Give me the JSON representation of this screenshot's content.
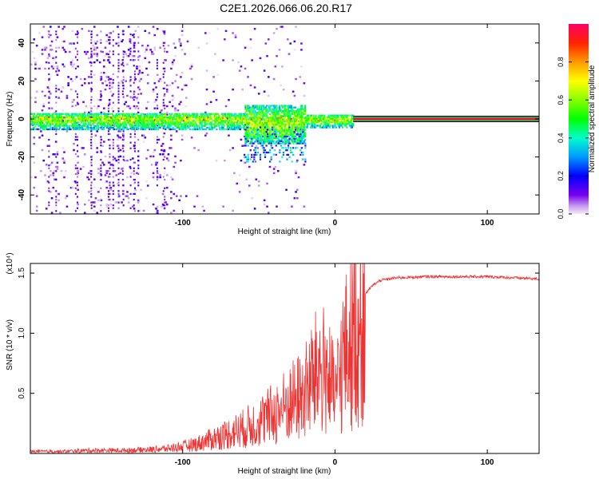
{
  "title": "C2E1.2026.066.06.20.R17",
  "chart_data": [
    {
      "type": "heatmap",
      "xlabel": "Height of straight line (km)",
      "ylabel": "Frequency (Hz)",
      "xlim": [
        -200,
        134
      ],
      "ylim": [
        -50,
        50
      ],
      "xticks": [
        -100,
        0,
        100
      ],
      "yticks": [
        -40,
        -20,
        0,
        20,
        40
      ],
      "colorbar": {
        "label": "Normalized spectral amplitude",
        "range": [
          0,
          1
        ],
        "ticks": [
          "0.0",
          "0.2",
          "0.4",
          "0.6",
          "0.8"
        ],
        "tick_values": [
          0,
          0.2,
          0.4,
          0.6,
          0.8
        ]
      },
      "carrier": {
        "frequency": 0,
        "x_start": 12,
        "x_end": 134,
        "amplitude": 0.95
      },
      "noisy_region": {
        "x_start": -200,
        "x_end": -20
      }
    },
    {
      "type": "line",
      "xlabel": "Height of straight line (km)",
      "ylabel": "SNR (10 * v/v)",
      "scale_note": "(x10⁴)",
      "xlim": [
        -200,
        134
      ],
      "ylim": [
        0,
        1.58
      ],
      "xticks": [
        -100,
        0,
        100
      ],
      "yticks": [
        0.5,
        1.0,
        1.5
      ],
      "ytick_labels": [
        "0.5",
        "1.0",
        "1.5"
      ],
      "color": "#ee3333",
      "series": [
        {
          "name": "SNR",
          "x": [
            -200,
            -180,
            -160,
            -140,
            -120,
            -110,
            -100,
            -90,
            -80,
            -70,
            -60,
            -50,
            -40,
            -30,
            -20,
            -15,
            -10,
            -5,
            0,
            5,
            10,
            15,
            20,
            25,
            30,
            40,
            60,
            80,
            100,
            120,
            134
          ],
          "values": [
            0.02,
            0.02,
            0.03,
            0.03,
            0.04,
            0.05,
            0.07,
            0.1,
            0.15,
            0.2,
            0.25,
            0.32,
            0.4,
            0.5,
            0.6,
            0.75,
            0.85,
            0.82,
            0.55,
            0.95,
            1.1,
            1.25,
            1.33,
            1.4,
            1.44,
            1.46,
            1.47,
            1.47,
            1.47,
            1.46,
            1.45
          ]
        }
      ]
    }
  ]
}
